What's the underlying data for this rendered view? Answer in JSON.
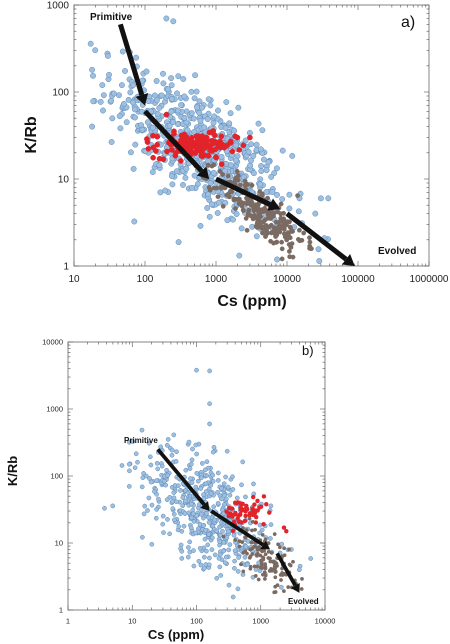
{
  "chart_data": [
    {
      "type": "scatter",
      "panel_label": "a)",
      "xlabel": "Cs (ppm)",
      "ylabel": "K/Rb",
      "x_scale": "log",
      "y_scale": "log",
      "xlim": [
        10,
        1000000
      ],
      "ylim": [
        1,
        1000
      ],
      "x_ticks": [
        "10",
        "100",
        "1000",
        "10000",
        "100000",
        "1000000"
      ],
      "y_ticks": [
        "1",
        "10",
        "100",
        "1000"
      ],
      "annotations": [
        "Primitive",
        "Evolved"
      ],
      "grid": false,
      "colors": {
        "blue_fill": "#9dbfe0",
        "blue_edge": "#5d88b7",
        "red": "#e2232a",
        "brown": "#7a6a62",
        "arrow": "#111111"
      },
      "arrows": [
        {
          "from": [
            45,
            600
          ],
          "to": [
            100,
            70
          ]
        },
        {
          "from": [
            100,
            60
          ],
          "to": [
            800,
            10
          ]
        },
        {
          "from": [
            1000,
            10
          ],
          "to": [
            8000,
            4.5
          ]
        },
        {
          "from": [
            10000,
            4
          ],
          "to": [
            90000,
            1
          ]
        }
      ],
      "series": [
        {
          "color": "blue",
          "center": [
            600,
            22
          ],
          "spread": [
            0.6,
            0.32
          ],
          "count": 640,
          "anchors": [
            [
              18,
              180
            ],
            [
              18,
              40
            ],
            [
              25,
              120
            ],
            [
              30,
              260
            ],
            [
              200,
              700
            ],
            [
              250,
              650
            ],
            [
              15000,
              6
            ],
            [
              25000,
              4
            ],
            [
              30000,
              6
            ]
          ]
        },
        {
          "color": "red",
          "center": [
            500,
            24
          ],
          "spread": [
            0.28,
            0.07
          ],
          "count": 150,
          "anchors": [
            [
              2000,
              30
            ],
            [
              3000,
              30
            ],
            [
              200,
              55
            ]
          ]
        },
        {
          "color": "brown",
          "center": [
            4500,
            4
          ],
          "spread": [
            0.3,
            0.14
          ],
          "count": 230,
          "anchors": [
            [
              800,
              8
            ],
            [
              12000,
              2.5
            ]
          ]
        }
      ]
    },
    {
      "type": "scatter",
      "panel_label": "b)",
      "xlabel": "Cs (ppm)",
      "ylabel": "K/Rb",
      "x_scale": "log",
      "y_scale": "log",
      "xlim": [
        1,
        10000
      ],
      "ylim": [
        1,
        10000
      ],
      "x_ticks": [
        "1",
        "10",
        "100",
        "1000",
        "10000"
      ],
      "y_ticks": [
        "1",
        "10",
        "100",
        "1000",
        "10000"
      ],
      "annotations": [
        "Primitive",
        "Evolved"
      ],
      "grid": false,
      "colors": {
        "blue_fill": "#9dbfe0",
        "blue_edge": "#5d88b7",
        "red": "#e2232a",
        "brown": "#7a6a62",
        "arrow": "#111111"
      },
      "arrows": [
        {
          "from": [
            25,
            250
          ],
          "to": [
            160,
            30
          ]
        },
        {
          "from": [
            170,
            30
          ],
          "to": [
            1400,
            8
          ]
        },
        {
          "from": [
            1800,
            7
          ],
          "to": [
            4000,
            1.8
          ]
        }
      ],
      "series": [
        {
          "color": "blue",
          "center": [
            150,
            30
          ],
          "spread": [
            0.5,
            0.4
          ],
          "count": 520,
          "anchors": [
            [
              9,
              320
            ],
            [
              9,
              150
            ],
            [
              9,
              70
            ],
            [
              100,
              3800
            ],
            [
              160,
              3700
            ],
            [
              160,
              1200
            ],
            [
              160,
              600
            ],
            [
              3000,
              8
            ],
            [
              4000,
              4
            ]
          ]
        },
        {
          "color": "red",
          "center": [
            600,
            28
          ],
          "spread": [
            0.18,
            0.1
          ],
          "count": 60,
          "anchors": [
            [
              2300,
              17
            ],
            [
              2500,
              15
            ],
            [
              400,
              40
            ]
          ]
        },
        {
          "color": "brown",
          "center": [
            1200,
            6
          ],
          "spread": [
            0.22,
            0.18
          ],
          "count": 130,
          "anchors": [
            [
              2500,
              3.5
            ]
          ]
        }
      ]
    }
  ]
}
